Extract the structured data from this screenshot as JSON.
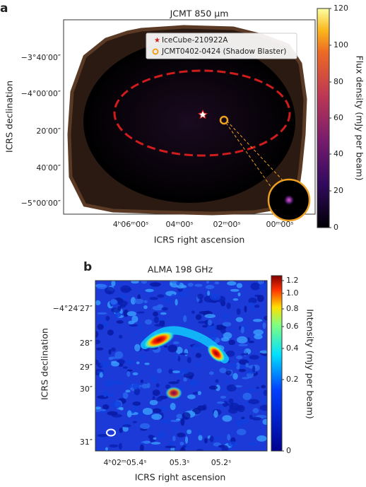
{
  "panel_a": {
    "label": "a",
    "title": "JCMT 850 µm",
    "x_axis_label": "ICRS right ascension",
    "y_axis_label": "ICRS declination",
    "x_ticks": [
      "4ʰ06ᵐ00ˢ",
      "04ᵐ00ˢ",
      "02ᵐ00ˢ",
      "00ᵐ00ˢ"
    ],
    "y_ticks": [
      "−3°40′00″",
      "−4°00′00″",
      "20′00″",
      "40′00″",
      "−5°00′00″"
    ],
    "colorbar_label": "Flux density (mJy per beam)",
    "colorbar_ticks": [
      "120",
      "100",
      "80",
      "60",
      "40",
      "20",
      "0"
    ],
    "legend": [
      "IceCube-210922A",
      "JCMT0402-0424 (Shadow Blaster)"
    ]
  },
  "panel_b": {
    "label": "b",
    "title": "ALMA 198 GHz",
    "x_axis_label": "ICRS right ascension",
    "y_axis_label": "ICRS declination",
    "x_ticks": [
      "4ʰ02ᵐ05.4ˢ",
      "05.3ˢ",
      "05.2ˢ"
    ],
    "y_ticks": [
      "−4°24′27″",
      "28″",
      "29″",
      "30″",
      "31″"
    ],
    "colorbar_label": "Intensity (mJy per beam)",
    "colorbar_ticks": [
      "1.2",
      "1.0",
      "0.8",
      "0.6",
      "0.4",
      "0.2",
      "0"
    ]
  }
}
